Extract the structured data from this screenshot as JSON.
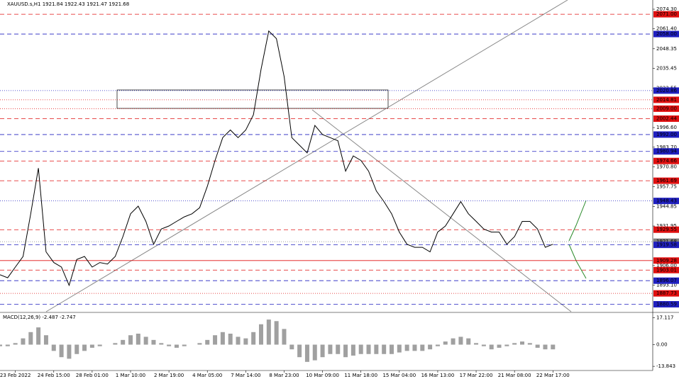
{
  "chart_data": [
    {
      "type": "line",
      "title": "XAUUSD.s,H1  1921.84 1922.43 1921.47 1921.68",
      "x": [
        0,
        2,
        4,
        6,
        8,
        10,
        12,
        14,
        16,
        18,
        20,
        22,
        24,
        26,
        28,
        30,
        32,
        34,
        36,
        38,
        40,
        42,
        44,
        46,
        48,
        50,
        52,
        54,
        56,
        58,
        60,
        62,
        64,
        66,
        68,
        70,
        72,
        74,
        76,
        78,
        80,
        82,
        84,
        86,
        88,
        90,
        92,
        94,
        96,
        98,
        100,
        102,
        104,
        106,
        108,
        110,
        112,
        114,
        116,
        118,
        120,
        122,
        124,
        126,
        128,
        130,
        132,
        134,
        136,
        138,
        140,
        142,
        144
      ],
      "series": [
        {
          "name": "XAUUSD.s",
          "color": "#000000",
          "values": [
            1900,
            1898,
            1905,
            1912,
            1940,
            1970,
            1915,
            1908,
            1905,
            1893,
            1910,
            1912,
            1905,
            1908,
            1907,
            1912,
            1925,
            1940,
            1945,
            1935,
            1920,
            1930,
            1932,
            1935,
            1938,
            1940,
            1944,
            1958,
            1975,
            1990,
            1995,
            1990,
            1995,
            2005,
            2035,
            2060,
            2055,
            2030,
            1990,
            1985,
            1980,
            1998,
            1992,
            1990,
            1988,
            1968,
            1978,
            1975,
            1968,
            1955,
            1948,
            1940,
            1928,
            1920,
            1918,
            1918,
            1915,
            1928,
            1932,
            1940,
            1948,
            1940,
            1935,
            1930,
            1928,
            1928,
            1920,
            1925,
            1935,
            1935,
            1930,
            1918,
            1920
          ]
        }
      ],
      "xlim": [
        0,
        170
      ],
      "xticks": [
        {
          "value": 4,
          "label": "23 Feb 2022"
        },
        {
          "value": 14,
          "label": "24 Feb 15:00"
        },
        {
          "value": 24,
          "label": "28 Feb 01:00"
        },
        {
          "value": 34,
          "label": "1 Mar 10:00"
        },
        {
          "value": 44,
          "label": "2 Mar 19:00"
        },
        {
          "value": 54,
          "label": "4 Mar 05:00"
        },
        {
          "value": 64,
          "label": "7 Mar 14:00"
        },
        {
          "value": 74,
          "label": "8 Mar 23:00"
        },
        {
          "value": 84,
          "label": "10 Mar 09:00"
        },
        {
          "value": 94,
          "label": "11 Mar 18:00"
        },
        {
          "value": 104,
          "label": "15 Mar 04:00"
        },
        {
          "value": 114,
          "label": "16 Mar 13:00"
        },
        {
          "value": 124,
          "label": "17 Mar 22:00"
        },
        {
          "value": 134,
          "label": "21 Mar 08:00"
        },
        {
          "value": 144,
          "label": "22 Mar 17:00"
        }
      ],
      "ylim": [
        1875.7,
        2080.35
      ],
      "yticks": [
        {
          "value": 2074.3,
          "label": "2074.30"
        },
        {
          "value": 2061.4,
          "label": "2061.40"
        },
        {
          "value": 2048.35,
          "label": "2048.35"
        },
        {
          "value": 2035.45,
          "label": "2035.45"
        },
        {
          "value": 2022.55,
          "label": "2022.55"
        },
        {
          "value": 1996.6,
          "label": "1996.60"
        },
        {
          "value": 1983.7,
          "label": "1983.70"
        },
        {
          "value": 1970.8,
          "label": "1970.80"
        },
        {
          "value": 1957.75,
          "label": "1957.75"
        },
        {
          "value": 1944.85,
          "label": "1944.85"
        },
        {
          "value": 1931.95,
          "label": "1931.95"
        },
        {
          "value": 1906,
          "label": "1906.00"
        },
        {
          "value": 1893.1,
          "label": "1893.10"
        }
      ],
      "levels": [
        {
          "value": 2071,
          "label": "2071.00",
          "color": "#e01010",
          "style": "dashed"
        },
        {
          "value": 2058,
          "label": "2058.00",
          "color": "#2020c0",
          "style": "dashed"
        },
        {
          "value": 2020.86,
          "label": "2020.86",
          "color": "#2020c0",
          "style": "dotted"
        },
        {
          "value": 2014.81,
          "label": "2014.81",
          "color": "#e01010",
          "style": "dotted"
        },
        {
          "value": 2009,
          "label": "2009.00",
          "color": "#e01010",
          "style": "dotted"
        },
        {
          "value": 2002.44,
          "label": "2002.44",
          "color": "#e01010",
          "style": "dashed"
        },
        {
          "value": 1992,
          "label": "1992.00",
          "color": "#2020c0",
          "style": "dashed"
        },
        {
          "value": 1980.94,
          "label": "1980.94",
          "color": "#2020c0",
          "style": "dashed"
        },
        {
          "value": 1974.66,
          "label": "1974.66",
          "color": "#e01010",
          "style": "dashed"
        },
        {
          "value": 1961.69,
          "label": "1961.69",
          "color": "#e01010",
          "style": "dashed"
        },
        {
          "value": 1948.43,
          "label": "1948.43",
          "color": "#2020c0",
          "style": "dotted"
        },
        {
          "value": 1929.55,
          "label": "1929.55",
          "color": "#e01010",
          "style": "dashed"
        },
        {
          "value": 1921.68,
          "label": "1921.68",
          "color": "#808080",
          "style": "dotted"
        },
        {
          "value": 1919.58,
          "label": "1919.58",
          "color": "#2020c0",
          "style": "dashed"
        },
        {
          "value": 1909.28,
          "label": "1909.28",
          "color": "#e01010",
          "style": "solid"
        },
        {
          "value": 1903.01,
          "label": "1903.01",
          "color": "#e01010",
          "style": "dashed"
        },
        {
          "value": 1896.07,
          "label": "1896.07",
          "color": "#2020c0",
          "style": "dashed"
        },
        {
          "value": 1887.73,
          "label": "1887.73",
          "color": "#e01010",
          "style": "dotted"
        },
        {
          "value": 1880.59,
          "label": "1880.59",
          "color": "#2020c0",
          "style": "dashed"
        }
      ]
    },
    {
      "type": "bar",
      "title": "MACD(12,26,9) -2.487 -2.747",
      "x": [
        0,
        2,
        4,
        6,
        8,
        10,
        12,
        14,
        16,
        18,
        20,
        22,
        24,
        26,
        28,
        30,
        32,
        34,
        36,
        38,
        40,
        42,
        44,
        46,
        48,
        50,
        52,
        54,
        56,
        58,
        60,
        62,
        64,
        66,
        68,
        70,
        72,
        74,
        76,
        78,
        80,
        82,
        84,
        86,
        88,
        90,
        92,
        94,
        96,
        98,
        100,
        102,
        104,
        106,
        108,
        110,
        112,
        114,
        116,
        118,
        120,
        122,
        124,
        126,
        128,
        130,
        132,
        134,
        136,
        138,
        140,
        142,
        144
      ],
      "values": [
        -1,
        -1,
        1,
        4,
        8,
        11,
        6,
        -4,
        -8,
        -9,
        -6,
        -4,
        -2,
        -1,
        0,
        1,
        3,
        6,
        7,
        5,
        3,
        1,
        -1,
        -2,
        -1,
        0,
        1,
        3,
        6,
        8,
        7,
        5,
        4,
        8,
        13,
        16,
        15,
        10,
        -3,
        -8,
        -11,
        -10,
        -8,
        -6,
        -6,
        -8,
        -7,
        -6,
        -6,
        -6,
        -6,
        -6,
        -5,
        -4,
        -4,
        -4,
        -3,
        -1,
        2,
        4,
        5,
        4,
        1,
        -1,
        -3,
        -2,
        -1,
        1,
        2,
        1,
        -2,
        -3,
        -3
      ],
      "color": "#a0a0a0",
      "xlim": [
        0,
        170
      ],
      "ylim": [
        -16.5,
        20.56
      ],
      "yticks": [
        17.117,
        {
          "value": 0,
          "label": "0.00"
        },
        -13.843
      ]
    }
  ]
}
